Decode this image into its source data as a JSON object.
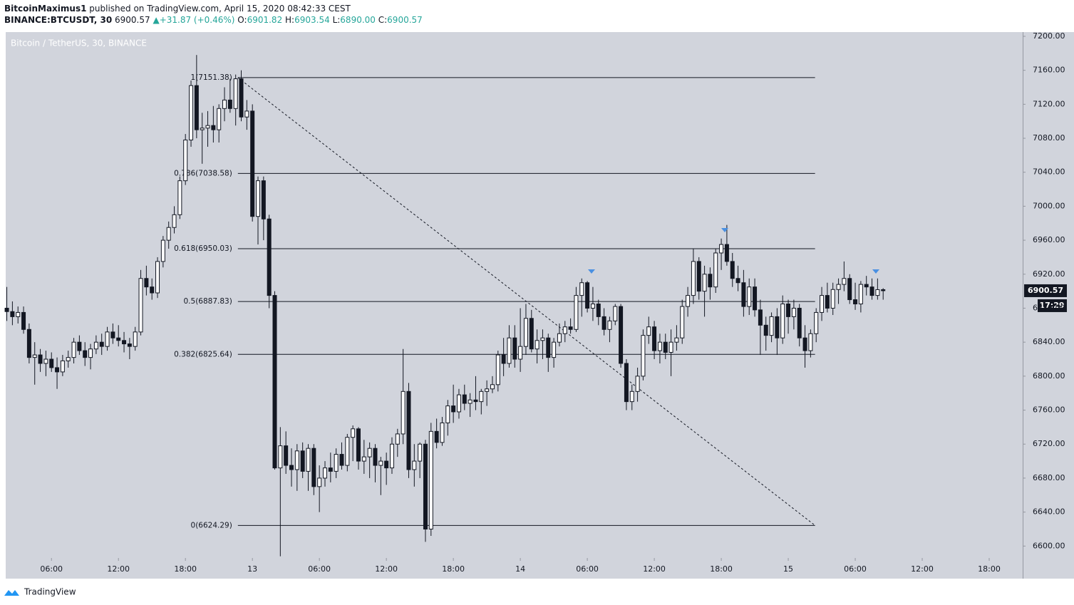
{
  "header": {
    "author": "BitcoinMaximus1",
    "published": "published on TradingView.com, April 15, 2020 08:42:33 CEST",
    "symbol": "BINANCE:BTCUSDT, 30",
    "price": "6900.57",
    "arrow": "▲",
    "change": "+31.87 (+0.46%)",
    "o_label": "O:",
    "o": "6901.82",
    "h_label": "H:",
    "h": "6903.54",
    "l_label": "L:",
    "l": "6890.00",
    "c_label": "C:",
    "c": "6900.57"
  },
  "watermark": "Bitcoin / TetherUS, 30, BINANCE",
  "countdown": "17:29",
  "footer": "TradingView",
  "chart_data": {
    "type": "candlestick",
    "up_color": "#ffffff",
    "down_color": "#131722",
    "x": [
      2,
      2.5,
      3,
      3.5,
      4,
      4.5,
      5,
      5.5,
      6,
      6.5,
      7,
      7.5,
      8,
      8.5,
      9,
      9.5,
      10,
      10.5,
      11,
      11.5,
      12,
      12.5,
      13,
      13.5,
      14,
      14.5,
      15,
      15.5,
      16,
      16.5,
      17,
      17.5,
      18,
      18.5,
      19,
      19.5,
      20,
      20.5,
      21,
      21.5,
      22,
      22.5,
      23,
      23.5,
      24,
      24.5,
      25,
      25.5,
      26,
      26.5,
      27,
      27.5,
      28,
      28.5,
      29,
      29.5,
      30,
      30.5,
      31,
      31.5,
      32,
      32.5,
      33,
      33.5,
      34,
      34.5,
      35,
      35.5,
      36,
      36.5,
      37,
      37.5,
      38,
      38.5,
      39,
      39.5,
      40,
      40.5,
      41,
      41.5,
      42,
      42.5,
      43,
      43.5,
      44,
      44.5,
      45,
      45.5,
      46,
      46.5,
      47,
      47.5,
      48,
      48.5,
      49,
      49.5,
      50,
      50.5,
      51,
      51.5,
      52,
      52.5,
      53,
      53.5,
      54,
      54.5,
      55,
      55.5,
      56,
      56.5,
      57,
      57.5,
      58,
      58.5,
      59,
      59.5,
      60,
      60.5,
      61,
      61.5,
      62,
      62.5,
      63,
      63.5,
      64,
      64.5,
      65,
      65.5,
      66,
      66.5,
      67,
      67.5,
      68,
      68.5,
      69,
      69.5,
      70,
      70.5,
      71,
      71.5,
      72,
      72.5,
      73,
      73.5,
      74,
      74.5,
      75,
      75.5,
      76,
      76.5,
      77,
      77.5,
      78,
      78.5,
      79,
      79.5,
      80,
      80.5
    ],
    "open": [
      6880,
      6876,
      6870,
      6875,
      6855,
      6822,
      6825,
      6815,
      6820,
      6810,
      6805,
      6818,
      6822,
      6840,
      6830,
      6822,
      6832,
      6840,
      6835,
      6852,
      6845,
      6842,
      6838,
      6835,
      6852,
      6915,
      6905,
      6898,
      6935,
      6960,
      6975,
      6990,
      7030,
      7078,
      7142,
      7090,
      7092,
      7095,
      7090,
      7115,
      7125,
      7115,
      7150,
      7105,
      7112,
      6988,
      7030,
      6985,
      6895,
      6692,
      6718,
      6695,
      6690,
      6712,
      6688,
      6715,
      6670,
      6680,
      6692,
      6688,
      6708,
      6695,
      6728,
      6738,
      6700,
      6705,
      6715,
      6695,
      6700,
      6692,
      6720,
      6732,
      6782,
      6690,
      6700,
      6720,
      6620,
      6735,
      6722,
      6745,
      6765,
      6758,
      6778,
      6768,
      6772,
      6770,
      6782,
      6785,
      6790,
      6825,
      6815,
      6845,
      6820,
      6835,
      6868,
      6832,
      6842,
      6845,
      6822,
      6840,
      6850,
      6858,
      6855,
      6895,
      6910,
      6880,
      6885,
      6870,
      6855,
      6865,
      6882,
      6815,
      6770,
      6782,
      6800,
      6848,
      6858,
      6830,
      6840,
      6828,
      6840,
      6845,
      6882,
      6895,
      6935,
      6900,
      6920,
      6905,
      6945,
      6955,
      6935,
      6915,
      6910,
      6882,
      6905,
      6878,
      6860,
      6848,
      6870,
      6845,
      6885,
      6870,
      6880,
      6845,
      6830,
      6850,
      6875,
      6895,
      6880,
      6902,
      6908,
      6915,
      6890,
      6885,
      6908,
      6905,
      6895,
      6901.82
    ],
    "high": [
      6905,
      6888,
      6882,
      6882,
      6862,
      6840,
      6832,
      6830,
      6828,
      6822,
      6825,
      6830,
      6845,
      6848,
      6840,
      6838,
      6848,
      6850,
      6858,
      6862,
      6860,
      6852,
      6845,
      6858,
      6925,
      6930,
      6915,
      6940,
      6965,
      6982,
      7000,
      7035,
      7085,
      7148,
      7178,
      7110,
      7112,
      7118,
      7120,
      7140,
      7150,
      7155,
      7160,
      7125,
      7120,
      7035,
      7035,
      6990,
      6900,
      6740,
      6735,
      6715,
      6720,
      6722,
      6720,
      6720,
      6695,
      6700,
      6710,
      6715,
      6722,
      6732,
      6742,
      6740,
      6725,
      6722,
      6720,
      6705,
      6710,
      6728,
      6738,
      6832,
      6792,
      6720,
      6722,
      6725,
      6745,
      6750,
      6752,
      6772,
      6790,
      6785,
      6790,
      6780,
      6800,
      6785,
      6795,
      6800,
      6830,
      6845,
      6860,
      6860,
      6880,
      6885,
      6878,
      6855,
      6855,
      6850,
      6845,
      6862,
      6865,
      6868,
      6905,
      6915,
      6912,
      6905,
      6890,
      6880,
      6870,
      6885,
      6885,
      6820,
      6790,
      6810,
      6855,
      6870,
      6865,
      6850,
      6850,
      6855,
      6860,
      6890,
      6905,
      6950,
      6940,
      6930,
      6928,
      6950,
      6962,
      6978,
      6945,
      6930,
      6925,
      6915,
      6915,
      6890,
      6870,
      6875,
      6880,
      6895,
      6890,
      6890,
      6885,
      6860,
      6855,
      6880,
      6905,
      6910,
      6910,
      6915,
      6935,
      6920,
      6910,
      6912,
      6918,
      6915,
      6915,
      6903.54
    ],
    "low": [
      6865,
      6860,
      6862,
      6850,
      6815,
      6790,
      6805,
      6800,
      6805,
      6785,
      6800,
      6810,
      6815,
      6825,
      6812,
      6808,
      6826,
      6825,
      6830,
      6838,
      6835,
      6828,
      6820,
      6830,
      6848,
      6895,
      6890,
      6892,
      6928,
      6950,
      6968,
      6985,
      7025,
      7070,
      7080,
      7050,
      7070,
      7075,
      7075,
      7100,
      7110,
      7095,
      7100,
      7090,
      6982,
      6955,
      6960,
      6880,
      6690,
      6588,
      6685,
      6670,
      6665,
      6680,
      6665,
      6660,
      6640,
      6670,
      6675,
      6680,
      6690,
      6688,
      6700,
      6690,
      6685,
      6680,
      6675,
      6660,
      6672,
      6685,
      6705,
      6720,
      6680,
      6670,
      6680,
      6605,
      6612,
      6715,
      6718,
      6730,
      6745,
      6750,
      6760,
      6752,
      6760,
      6755,
      6765,
      6780,
      6782,
      6800,
      6810,
      6810,
      6805,
      6825,
      6828,
      6815,
      6820,
      6805,
      6810,
      6835,
      6840,
      6850,
      6852,
      6870,
      6875,
      6865,
      6860,
      6848,
      6840,
      6860,
      6810,
      6760,
      6760,
      6770,
      6795,
      6838,
      6820,
      6815,
      6820,
      6800,
      6830,
      6838,
      6870,
      6885,
      6890,
      6870,
      6890,
      6898,
      6925,
      6930,
      6905,
      6900,
      6870,
      6872,
      6870,
      6825,
      6830,
      6840,
      6825,
      6838,
      6850,
      6855,
      6835,
      6810,
      6822,
      6840,
      6865,
      6875,
      6872,
      6885,
      6900,
      6885,
      6878,
      6875,
      6895,
      6890,
      6890,
      6890
    ],
    "close": [
      6876,
      6870,
      6875,
      6855,
      6822,
      6825,
      6815,
      6820,
      6810,
      6805,
      6818,
      6822,
      6840,
      6830,
      6822,
      6832,
      6840,
      6835,
      6852,
      6845,
      6842,
      6838,
      6835,
      6852,
      6915,
      6905,
      6898,
      6935,
      6960,
      6975,
      6990,
      7030,
      7078,
      7142,
      7090,
      7092,
      7095,
      7090,
      7115,
      7125,
      7115,
      7150,
      7105,
      7112,
      6988,
      7030,
      6985,
      6895,
      6692,
      6718,
      6695,
      6690,
      6712,
      6688,
      6715,
      6670,
      6680,
      6692,
      6688,
      6708,
      6695,
      6728,
      6738,
      6700,
      6705,
      6715,
      6695,
      6700,
      6692,
      6720,
      6732,
      6782,
      6690,
      6700,
      6720,
      6620,
      6735,
      6722,
      6745,
      6765,
      6758,
      6778,
      6768,
      6772,
      6770,
      6782,
      6785,
      6790,
      6825,
      6815,
      6845,
      6820,
      6835,
      6868,
      6832,
      6842,
      6845,
      6822,
      6840,
      6850,
      6858,
      6855,
      6895,
      6910,
      6880,
      6885,
      6870,
      6855,
      6865,
      6882,
      6815,
      6770,
      6782,
      6800,
      6848,
      6858,
      6830,
      6840,
      6828,
      6840,
      6845,
      6882,
      6895,
      6935,
      6900,
      6920,
      6905,
      6945,
      6955,
      6935,
      6915,
      6910,
      6882,
      6905,
      6878,
      6860,
      6848,
      6870,
      6845,
      6885,
      6870,
      6880,
      6845,
      6830,
      6850,
      6875,
      6895,
      6880,
      6902,
      6908,
      6915,
      6890,
      6885,
      6908,
      6905,
      6895,
      6901.82,
      6900.57
    ],
    "xlim": [
      1.9,
      93
    ],
    "ylim": [
      6586,
      7205
    ],
    "xticks": [
      {
        "value": 6,
        "label": "06:00"
      },
      {
        "value": 12,
        "label": "12:00"
      },
      {
        "value": 18,
        "label": "18:00"
      },
      {
        "value": 24,
        "label": "13"
      },
      {
        "value": 30,
        "label": "06:00"
      },
      {
        "value": 36,
        "label": "12:00"
      },
      {
        "value": 42,
        "label": "18:00"
      },
      {
        "value": 48,
        "label": "14"
      },
      {
        "value": 54,
        "label": "06:00"
      },
      {
        "value": 60,
        "label": "12:00"
      },
      {
        "value": 66,
        "label": "18:00"
      },
      {
        "value": 72,
        "label": "15"
      },
      {
        "value": 78,
        "label": "06:00"
      },
      {
        "value": 84,
        "label": "12:00"
      },
      {
        "value": 90,
        "label": "18:00"
      }
    ],
    "yticks": [
      {
        "value": 6600,
        "label": "6600.00"
      },
      {
        "value": 6640,
        "label": "6640.00"
      },
      {
        "value": 6680,
        "label": "6680.00"
      },
      {
        "value": 6720,
        "label": "6720.00"
      },
      {
        "value": 6760,
        "label": "6760.00"
      },
      {
        "value": 6800,
        "label": "6800.00"
      },
      {
        "value": 6840,
        "label": "6840.00"
      },
      {
        "value": 6880,
        "label": "6880.00"
      },
      {
        "value": 6920,
        "label": "6920.00"
      },
      {
        "value": 6960,
        "label": "6960.00"
      },
      {
        "value": 7000,
        "label": "7000.00"
      },
      {
        "value": 7040,
        "label": "7040.00"
      },
      {
        "value": 7080,
        "label": "7080.00"
      },
      {
        "value": 7120,
        "label": "7120.00"
      },
      {
        "value": 7160,
        "label": "7160.00"
      },
      {
        "value": 7200,
        "label": "7200.00"
      }
    ],
    "fibonacci": {
      "x": [
        22.7,
        74.4
      ],
      "levels": [
        {
          "label": "1(7151.38)",
          "value": 7151.38
        },
        {
          "label": "0.786(7038.58)",
          "value": 7038.58
        },
        {
          "label": "0.618(6950.03)",
          "value": 6950.03
        },
        {
          "label": "0.5(6887.83)",
          "value": 6887.83
        },
        {
          "label": "0.382(6825.64)",
          "value": 6825.64
        },
        {
          "label": "0(6624.29)",
          "value": 6624.29
        }
      ]
    }
  }
}
